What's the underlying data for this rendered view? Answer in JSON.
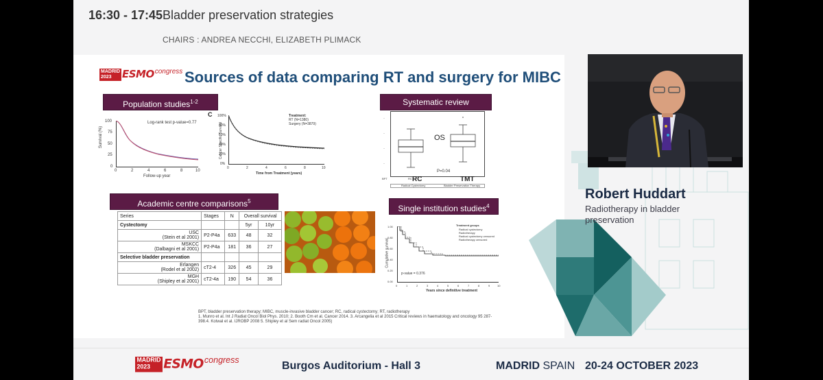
{
  "session": {
    "time": "16:30 - 17:45",
    "title": "Bladder preservation strategies",
    "chairs": "CHAIRS : ANDREA NECCHI, ELIZABETH PLIMACK"
  },
  "logo": {
    "city": "MADRID",
    "year": "2023",
    "brand": "ESMO",
    "word": "congress"
  },
  "slide": {
    "title": "Sources of data comparing RT and surgery for MIBC",
    "sections": {
      "population": "Population studies",
      "population_sup": "1-2",
      "systematic": "Systematic  review",
      "academic": "Academic centre comparisons",
      "academic_sup": "5",
      "single": "Single institution studies",
      "single_sup": "4"
    },
    "pop_chart_left": {
      "annotation": "Log-rank test p-value=0.77",
      "ylabel": "Survival (%)",
      "xlabel": "Follow-up year",
      "yticks": [
        "100",
        "75",
        "50",
        "25",
        "0"
      ],
      "xticks": [
        "0",
        "2",
        "4",
        "6",
        "8",
        "10"
      ]
    },
    "pop_chart_right": {
      "panel": "C",
      "legend_title": "Treatment:",
      "legend_rt": "RT (N=1380)",
      "legend_surgery": "Surgery (N=3879)",
      "ylabel": "Cancer Specific Survival",
      "xlabel": "Time from Treatment (years)",
      "yticks": [
        "100%",
        "80%",
        "60%",
        "40%",
        "20%",
        "0%"
      ],
      "xticks": [
        "0",
        "2",
        "4",
        "6",
        "8",
        "10"
      ]
    },
    "box_plot": {
      "label_os": "OS",
      "pvalue": "P=0.04",
      "xcat_rc": "RC",
      "xcat_tmt": "TMT",
      "legend_left": "Radical Cystectomy",
      "legend_right": "Bladder Preservation Therapy",
      "axis_left": "BPT",
      "axis_mid": "RC"
    },
    "single_chart": {
      "legend_title": "Treatment groups",
      "legend": [
        "Radical cystectomy",
        "Radiotherapy",
        "Radical cystectomy censored",
        "Radiotherapy censored"
      ],
      "pvalue": "p-value = 0.376",
      "ylabel": "Cumulative survival",
      "xlabel": "Years since definitive treatment",
      "yticks": [
        "1.00",
        "0.80",
        "0.60",
        "0.40",
        "0.20",
        "0.00"
      ],
      "xticks": [
        "0",
        "1",
        "2",
        "3",
        "4",
        "5",
        "6",
        "7",
        "8",
        "9",
        "10"
      ]
    },
    "academic_table": {
      "headers": [
        "Series",
        "Stages",
        "N",
        "Overall survival"
      ],
      "subheaders": [
        "5yr",
        "10yr"
      ],
      "group1": "Cystectomy",
      "group2": "Selective bladder preservation",
      "rows": [
        {
          "series": "USC",
          "ref": "(Stein et al 2001)",
          "stage": "P2-P4a",
          "n": "633",
          "y5": "48",
          "y10": "32"
        },
        {
          "series": "MSKCC",
          "ref": "(Dalbagni et al 2001)",
          "stage": "P2-P4a",
          "n": "181",
          "y5": "36",
          "y10": "27"
        },
        {
          "series": "Erlangen",
          "ref": "(Rodel et al 2002)",
          "stage": "cT2-4",
          "n": "326",
          "y5": "45",
          "y10": "29"
        },
        {
          "series": "MGH",
          "ref": "(Shipley et al 2001)",
          "stage": "cT2-4a",
          "n": "190",
          "y5": "54",
          "y10": "36"
        }
      ]
    },
    "footnote": [
      "BPT, bladder preservation therapy; MIBC, muscle-invasive bladder cancer; RC, radical cystectomy; RT, radiotherapy",
      "1. Munro et al. Int J Radiat Oncol Biol Phys. 2010; 2. Booth Cm et al. Cancer 2014. 3. Arcangelia et al 2015 Critical reviews in haematology and oncology 95 287-",
      "398.4. Kotwal et al. IJROBP 2008 5. Shipley et al Sem radiat Oncol 2005)"
    ]
  },
  "speaker": {
    "name": "Robert Huddart",
    "role": "Radiotherapy in bladder preservation"
  },
  "bottom": {
    "hall": "Burgos Auditorium - Hall 3",
    "city": "MADRID",
    "country": "SPAIN",
    "dates": "20-24 OCTOBER 2023"
  },
  "colors": {
    "section_box": "#5b1b45",
    "title": "#1f4e79",
    "brand_red": "#c52127",
    "teal": "#2f7b7a"
  }
}
